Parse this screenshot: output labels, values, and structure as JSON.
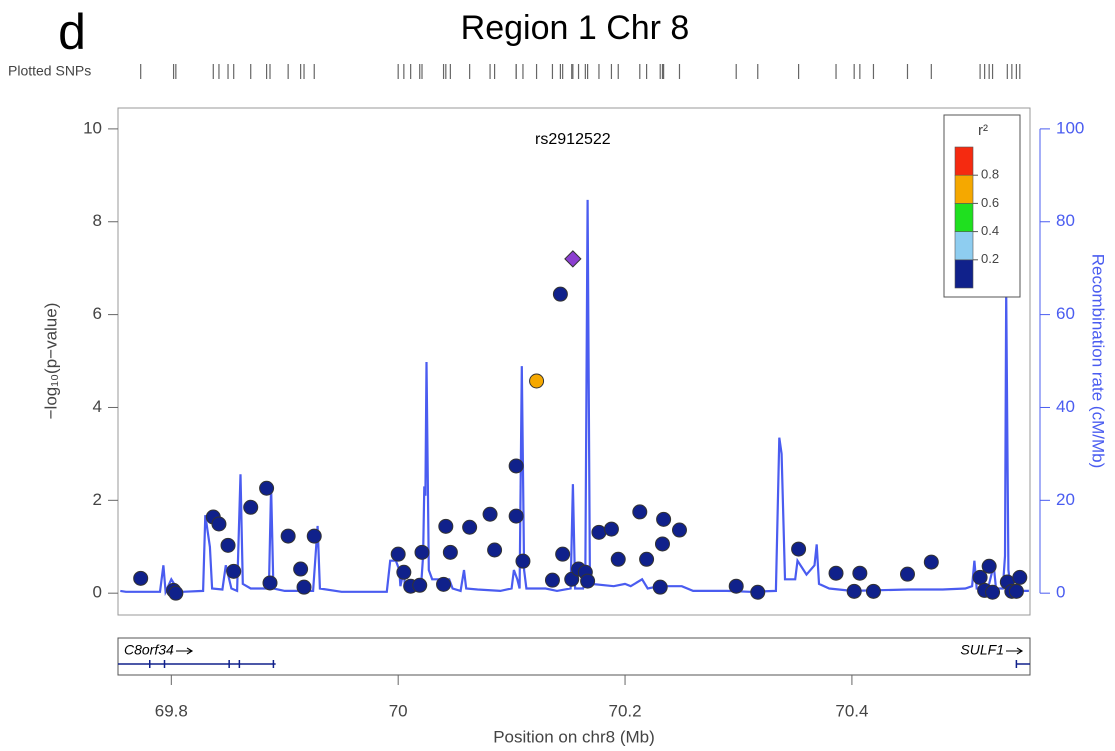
{
  "chart_data": {
    "type": "scatter",
    "panel_label": "d",
    "title": "Region 1 Chr 8",
    "rug_label": "Plotted SNPs",
    "x_label": "Position on chr8 (Mb)",
    "y_label": "−log₁₀(p−value)",
    "y2_label": "Recombination rate (cM/Mb)",
    "xlim": [
      69.753,
      70.557
    ],
    "ylim": [
      -0.47,
      10.45
    ],
    "y2lim": [
      -4.7,
      104.5
    ],
    "xticks": [
      69.8,
      70,
      70.2,
      70.4
    ],
    "yticks": [
      0,
      2,
      4,
      6,
      8,
      10
    ],
    "y2ticks": [
      0,
      20,
      40,
      60,
      80,
      100
    ],
    "x": [
      69.773,
      69.802,
      69.804,
      69.837,
      69.842,
      69.85,
      69.855,
      69.87,
      69.884,
      69.887,
      69.903,
      69.914,
      69.917,
      69.926,
      70.0,
      70.005,
      70.011,
      70.019,
      70.021,
      70.04,
      70.042,
      70.046,
      70.063,
      70.081,
      70.085,
      70.104,
      70.104,
      70.11,
      70.122,
      70.136,
      70.143,
      70.145,
      70.153,
      70.159,
      70.165,
      70.167,
      70.177,
      70.188,
      70.194,
      70.213,
      70.219,
      70.231,
      70.233,
      70.234,
      70.248,
      70.298,
      70.317,
      70.353,
      70.386,
      70.402,
      70.407,
      70.419,
      70.449,
      70.47,
      70.513,
      70.517,
      70.521,
      70.524,
      70.537,
      70.541,
      70.545,
      70.548
    ],
    "values": [
      0.32,
      0.06,
      0,
      1.64,
      1.49,
      1.03,
      0.47,
      1.85,
      2.26,
      0.22,
      1.23,
      0.52,
      0.13,
      1.23,
      0.84,
      0.45,
      0.15,
      0.17,
      0.88,
      0.19,
      1.44,
      0.88,
      1.42,
      1.7,
      0.93,
      2.74,
      1.66,
      0.69,
      4.57,
      0.28,
      6.44,
      0.84,
      0.3,
      0.52,
      0.45,
      0.26,
      1.31,
      1.38,
      0.73,
      1.75,
      0.73,
      0.13,
      1.06,
      1.59,
      1.36,
      0.15,
      0.02,
      0.95,
      0.43,
      0.04,
      0.43,
      0.04,
      0.41,
      0.67,
      0.34,
      0.06,
      0.58,
      0.02,
      0.24,
      0.04,
      0.04,
      0.34
    ],
    "point_colors": [
      "#10218b",
      "#10218b",
      "#10218b",
      "#10218b",
      "#10218b",
      "#10218b",
      "#10218b",
      "#10218b",
      "#10218b",
      "#10218b",
      "#10218b",
      "#10218b",
      "#10218b",
      "#10218b",
      "#10218b",
      "#10218b",
      "#10218b",
      "#10218b",
      "#10218b",
      "#10218b",
      "#10218b",
      "#10218b",
      "#10218b",
      "#10218b",
      "#10218b",
      "#10218b",
      "#10218b",
      "#10218b",
      "#f5a800",
      "#10218b",
      "#10218b",
      "#10218b",
      "#10218b",
      "#10218b",
      "#10218b",
      "#10218b",
      "#10218b",
      "#10218b",
      "#10218b",
      "#10218b",
      "#10218b",
      "#10218b",
      "#10218b",
      "#10218b",
      "#10218b",
      "#10218b",
      "#10218b",
      "#10218b",
      "#10218b",
      "#10218b",
      "#10218b",
      "#10218b",
      "#10218b",
      "#10218b",
      "#10218b",
      "#10218b",
      "#10218b",
      "#10218b",
      "#10218b",
      "#10218b",
      "#10218b",
      "#10218b"
    ],
    "lead": {
      "label": "rs2912522",
      "x": 70.154,
      "value": 7.2,
      "color": "#8c3fd0",
      "shape": "diamond"
    },
    "recombination": {
      "axis": "y2",
      "color": "#4a5cf0",
      "x": [
        69.755,
        69.76,
        69.79,
        69.793,
        69.795,
        69.8,
        69.805,
        69.81,
        69.828,
        69.83,
        69.834,
        69.836,
        69.845,
        69.848,
        69.853,
        69.858,
        69.861,
        69.863,
        69.87,
        69.886,
        69.888,
        69.89,
        69.9,
        69.925,
        69.929,
        69.931,
        69.95,
        69.99,
        69.993,
        69.998,
        70.001,
        70.002,
        70.005,
        70.006,
        70.01,
        70.018,
        70.02,
        70.022,
        70.023,
        70.024,
        70.025,
        70.027,
        70.03,
        70.045,
        70.048,
        70.055,
        70.058,
        70.06,
        70.07,
        70.09,
        70.1,
        70.102,
        70.105,
        70.107,
        70.109,
        70.111,
        70.113,
        70.13,
        70.14,
        70.152,
        70.154,
        70.156,
        70.163,
        70.165,
        70.167,
        70.169,
        70.17,
        70.19,
        70.2,
        70.205,
        70.215,
        70.22,
        70.23,
        70.25,
        70.26,
        70.29,
        70.31,
        70.333,
        70.336,
        70.338,
        70.341,
        70.35,
        70.352,
        70.356,
        70.36,
        70.367,
        70.369,
        70.371,
        70.38,
        70.4,
        70.45,
        70.48,
        70.5,
        70.506,
        70.508,
        70.51,
        70.52,
        70.525,
        70.527,
        70.533,
        70.535,
        70.536,
        70.538,
        70.54,
        70.55,
        70.556
      ],
      "values": [
        0.5,
        0.3,
        0.3,
        6,
        0.3,
        3,
        1,
        0.3,
        0.5,
        16.8,
        10,
        1,
        0.8,
        6,
        1,
        0.5,
        25.6,
        2,
        1,
        1,
        23,
        1,
        0.5,
        0.5,
        14.5,
        1,
        0.3,
        0.3,
        7,
        7,
        5,
        1.5,
        5,
        1,
        1,
        1.5,
        1,
        8,
        23,
        21,
        49.8,
        5,
        3,
        3,
        1,
        0.5,
        5,
        1,
        0.8,
        0.5,
        1,
        5,
        3,
        1,
        48.9,
        5,
        1,
        1,
        0.5,
        1,
        23.5,
        1,
        1,
        3,
        84.7,
        3,
        2,
        1.5,
        2,
        1.5,
        3,
        1,
        1.5,
        1.5,
        0.5,
        0.5,
        0.3,
        0.5,
        33.5,
        30,
        3,
        3,
        7,
        5.5,
        4,
        6,
        10.5,
        2,
        1,
        0.5,
        0.8,
        0.8,
        1,
        1.5,
        7,
        1,
        1,
        6,
        1,
        1,
        8,
        65,
        5,
        1,
        0.5,
        0.5
      ]
    },
    "legend": {
      "title": "r²",
      "corner": "top-right",
      "range": [
        0,
        1
      ],
      "colors": [
        "#10218b",
        "#8ecdf0",
        "#1fe01f",
        "#f5a800",
        "#f52a10"
      ],
      "ticks": [
        0.2,
        0.4,
        0.6,
        0.8
      ]
    },
    "genes": [
      {
        "name": "C8orf34",
        "start": 69.75,
        "end": 69.892,
        "exons": [
          69.781,
          69.794,
          69.851,
          69.86,
          69.89
        ]
      },
      {
        "name": "SULF1",
        "start": 70.545,
        "end": 70.56,
        "exons": [
          70.545
        ]
      }
    ]
  }
}
